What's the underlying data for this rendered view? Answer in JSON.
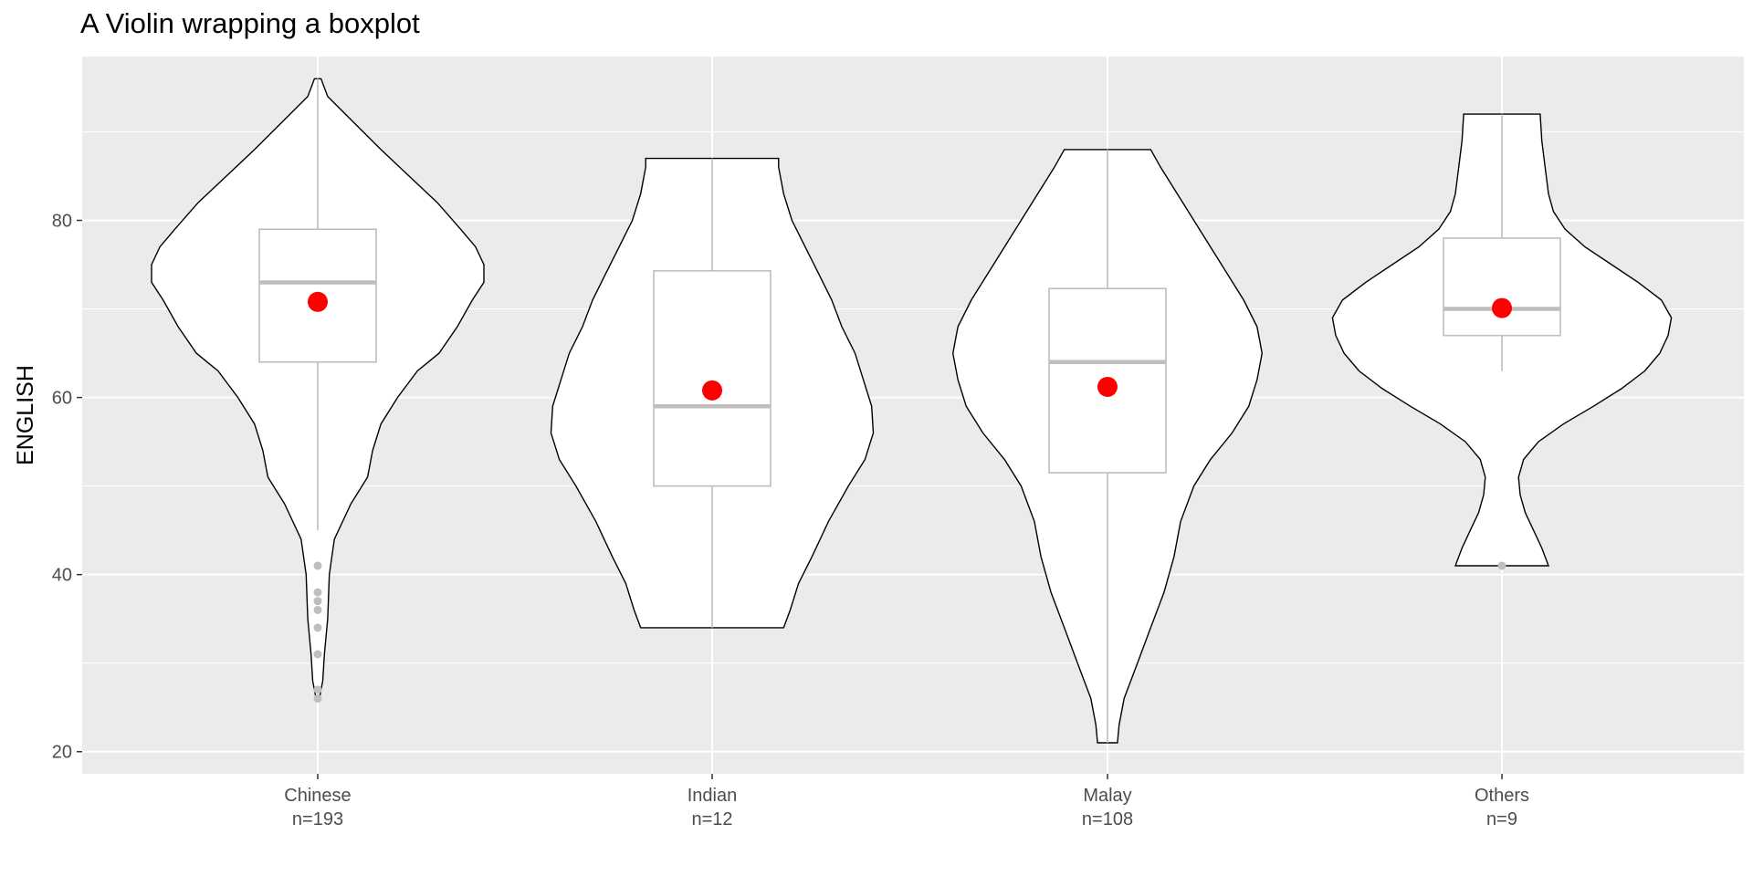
{
  "chart_data": {
    "type": "violin",
    "title": "A Violin wrapping a boxplot",
    "xlabel": "",
    "ylabel": "ENGLISH",
    "ylim": [
      17.5,
      98.5
    ],
    "yticks": [
      20,
      40,
      60,
      80
    ],
    "grid": true,
    "categories": [
      {
        "name": "Chinese",
        "n_label": "n=193",
        "violin_min": 26,
        "violin_max": 96,
        "q1": 64,
        "median": 73,
        "q3": 79,
        "whisker_low": 45,
        "whisker_high": 96,
        "mean": 70.8,
        "outliers": [
          41,
          38,
          37,
          36,
          34,
          31,
          27,
          26
        ],
        "density": [
          [
            26,
            0.01
          ],
          [
            28,
            0.03
          ],
          [
            31,
            0.04
          ],
          [
            35,
            0.06
          ],
          [
            40,
            0.07
          ],
          [
            44,
            0.1
          ],
          [
            48,
            0.2
          ],
          [
            51,
            0.3
          ],
          [
            54,
            0.33
          ],
          [
            57,
            0.38
          ],
          [
            60,
            0.48
          ],
          [
            63,
            0.6
          ],
          [
            65,
            0.73
          ],
          [
            68,
            0.84
          ],
          [
            71,
            0.93
          ],
          [
            73,
            1.0
          ],
          [
            75,
            1.0
          ],
          [
            77,
            0.95
          ],
          [
            79,
            0.86
          ],
          [
            82,
            0.72
          ],
          [
            85,
            0.55
          ],
          [
            88,
            0.38
          ],
          [
            91,
            0.22
          ],
          [
            94,
            0.06
          ],
          [
            96,
            0.02
          ]
        ]
      },
      {
        "name": "Indian",
        "n_label": "n=12",
        "violin_min": 34,
        "violin_max": 87,
        "q1": 50,
        "median": 59,
        "q3": 74.3,
        "whisker_low": 34,
        "whisker_high": 87,
        "mean": 60.8,
        "outliers": [],
        "density": [
          [
            34,
            0.43
          ],
          [
            36,
            0.47
          ],
          [
            39,
            0.52
          ],
          [
            42,
            0.6
          ],
          [
            46,
            0.7
          ],
          [
            50,
            0.82
          ],
          [
            53,
            0.92
          ],
          [
            56,
            0.97
          ],
          [
            59,
            0.96
          ],
          [
            62,
            0.91
          ],
          [
            65,
            0.86
          ],
          [
            68,
            0.78
          ],
          [
            71,
            0.72
          ],
          [
            74,
            0.64
          ],
          [
            77,
            0.56
          ],
          [
            80,
            0.48
          ],
          [
            83,
            0.43
          ],
          [
            86,
            0.4
          ],
          [
            87,
            0.4
          ]
        ]
      },
      {
        "name": "Malay",
        "n_label": "n=108",
        "violin_min": 21,
        "violin_max": 88,
        "q1": 51.5,
        "median": 64,
        "q3": 72.3,
        "whisker_low": 21,
        "whisker_high": 88,
        "mean": 61.2,
        "outliers": [],
        "density": [
          [
            21,
            0.06
          ],
          [
            23,
            0.07
          ],
          [
            26,
            0.1
          ],
          [
            30,
            0.18
          ],
          [
            34,
            0.26
          ],
          [
            38,
            0.34
          ],
          [
            42,
            0.4
          ],
          [
            46,
            0.44
          ],
          [
            50,
            0.52
          ],
          [
            53,
            0.62
          ],
          [
            56,
            0.75
          ],
          [
            59,
            0.85
          ],
          [
            62,
            0.9
          ],
          [
            65,
            0.93
          ],
          [
            68,
            0.9
          ],
          [
            71,
            0.82
          ],
          [
            74,
            0.72
          ],
          [
            77,
            0.62
          ],
          [
            80,
            0.52
          ],
          [
            83,
            0.42
          ],
          [
            86,
            0.32
          ],
          [
            88,
            0.26
          ]
        ]
      },
      {
        "name": "Others",
        "n_label": "n=9",
        "violin_min": 41,
        "violin_max": 92,
        "q1": 67,
        "median": 70,
        "q3": 78,
        "whisker_low": 63,
        "whisker_high": 92,
        "mean": 70.1,
        "outliers": [
          41
        ],
        "density": [
          [
            41,
            0.28
          ],
          [
            43,
            0.24
          ],
          [
            45,
            0.19
          ],
          [
            47,
            0.14
          ],
          [
            49,
            0.11
          ],
          [
            51,
            0.1
          ],
          [
            53,
            0.13
          ],
          [
            55,
            0.22
          ],
          [
            57,
            0.37
          ],
          [
            59,
            0.55
          ],
          [
            61,
            0.72
          ],
          [
            63,
            0.86
          ],
          [
            65,
            0.95
          ],
          [
            67,
            1.0
          ],
          [
            69,
            1.02
          ],
          [
            71,
            0.96
          ],
          [
            73,
            0.82
          ],
          [
            75,
            0.66
          ],
          [
            77,
            0.5
          ],
          [
            79,
            0.38
          ],
          [
            81,
            0.31
          ],
          [
            83,
            0.28
          ],
          [
            86,
            0.26
          ],
          [
            89,
            0.24
          ],
          [
            92,
            0.23
          ]
        ]
      }
    ],
    "colors": {
      "panel_bg": "#ebebeb",
      "grid": "#ffffff",
      "violin_fill": "#ffffff",
      "violin_stroke": "#000000",
      "box_stroke": "#bebebe",
      "median": "#bebebe",
      "mean_point": "#ff0000",
      "outlier": "#bebebe",
      "tick_text": "#4d4d4d"
    }
  }
}
